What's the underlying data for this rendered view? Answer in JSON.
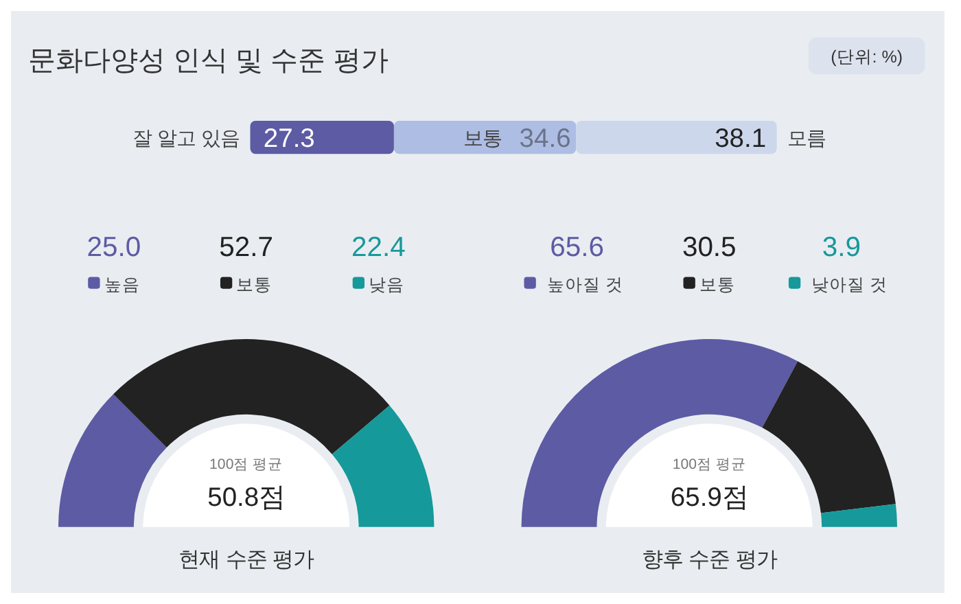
{
  "chart_data": [
    {
      "type": "bar",
      "title": "문화다양성 인식 및 수준 평가",
      "annotations": [
        "(단위: %)"
      ],
      "orientation": "horizontal",
      "stacked": true,
      "data_labels": true,
      "categories": [
        null
      ],
      "series": [
        {
          "name": "잘 알고 있음",
          "color": "#5d5ba3",
          "values": [
            27.3
          ]
        },
        {
          "name": "보통",
          "color": "#aebde3",
          "values": [
            34.6
          ]
        },
        {
          "name": "모름",
          "color": "#cdd7ec",
          "values": [
            38.1
          ]
        }
      ],
      "xlim": [
        0,
        100
      ]
    },
    {
      "type": "donut",
      "title": "현재 수준 평가",
      "annotations": [
        "100점 평균",
        "50.8점"
      ],
      "legend": "top",
      "categories": [
        "높음",
        "보통",
        "낮음"
      ],
      "values": [
        25.0,
        52.7,
        22.4
      ],
      "value_labels": [
        "25.0",
        "52.7",
        "22.4"
      ],
      "colors": [
        "#5d5ba3",
        "#222222",
        "#16999a"
      ]
    },
    {
      "type": "donut",
      "title": "향후 수준 평가",
      "annotations": [
        "100점 평균",
        "65.9점"
      ],
      "legend": "top",
      "categories": [
        "높아질 것",
        "보통",
        "낮아질 것"
      ],
      "values": [
        65.6,
        30.5,
        3.9
      ],
      "value_labels": [
        "65.6",
        "30.5",
        "3.9"
      ],
      "colors": [
        "#5d5ba3",
        "#222222",
        "#16999a"
      ]
    }
  ]
}
